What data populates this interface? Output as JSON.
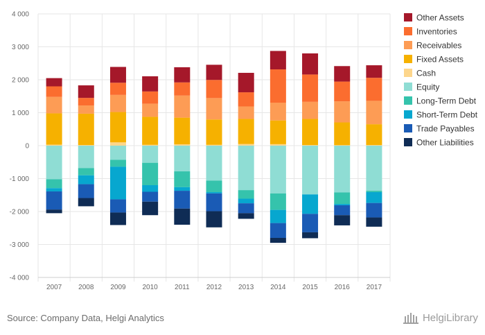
{
  "chart_data": {
    "type": "bar",
    "stacked": true,
    "categories": [
      "2007",
      "2008",
      "2009",
      "2010",
      "2011",
      "2012",
      "2013",
      "2014",
      "2015",
      "2016",
      "2017"
    ],
    "ylim": [
      -4000,
      4000
    ],
    "yticks": [
      4000,
      3000,
      2000,
      1000,
      0,
      -1000,
      -2000,
      -3000,
      -4000
    ],
    "ytick_labels": [
      "4 000",
      "3 000",
      "2 000",
      "1 000",
      "0",
      "-1 000",
      "-2 000",
      "-3 000",
      "-4 000"
    ],
    "grid": true,
    "legend_position": "right",
    "series": [
      {
        "name": "Cash",
        "color": "#fdd68c",
        "values": [
          30,
          20,
          100,
          25,
          40,
          25,
          50,
          45,
          20,
          15,
          20
        ]
      },
      {
        "name": "Fixed Assets",
        "color": "#f6b100",
        "values": [
          950,
          950,
          920,
          850,
          810,
          770,
          760,
          720,
          790,
          690,
          630
        ]
      },
      {
        "name": "Receivables",
        "color": "#fd9c55",
        "values": [
          500,
          250,
          520,
          400,
          670,
          650,
          380,
          540,
          520,
          640,
          710
        ]
      },
      {
        "name": "Inventories",
        "color": "#fb6d2f",
        "values": [
          320,
          230,
          370,
          370,
          400,
          550,
          430,
          1010,
          830,
          600,
          700
        ]
      },
      {
        "name": "Other Assets",
        "color": "#a5182a",
        "values": [
          250,
          380,
          480,
          460,
          460,
          460,
          590,
          560,
          640,
          470,
          380
        ]
      },
      {
        "name": "Equity",
        "color": "#8fddd4",
        "values": [
          -1020,
          -680,
          -430,
          -520,
          -780,
          -1060,
          -1350,
          -1450,
          -1480,
          -1420,
          -1370
        ]
      },
      {
        "name": "Long-Term Debt",
        "color": "#35c3ac",
        "values": [
          -270,
          -220,
          -210,
          -680,
          -480,
          -350,
          -260,
          -500,
          0,
          -350,
          -40
        ]
      },
      {
        "name": "Short-Term Debt",
        "color": "#07a7cf",
        "values": [
          -100,
          -270,
          -990,
          -200,
          -110,
          -40,
          -140,
          -400,
          -590,
          -40,
          -330
        ]
      },
      {
        "name": "Trade Payables",
        "color": "#1a5bb5",
        "values": [
          -550,
          -420,
          -400,
          -300,
          -540,
          -540,
          -300,
          -450,
          -560,
          -300,
          -440
        ]
      },
      {
        "name": "Other Liabilities",
        "color": "#0f2c55",
        "values": [
          -110,
          -250,
          -380,
          -410,
          -490,
          -490,
          -170,
          -150,
          -180,
          -310,
          -280
        ]
      }
    ],
    "legend_order": [
      "Other Assets",
      "Inventories",
      "Receivables",
      "Fixed Assets",
      "Cash",
      "Equity",
      "Long-Term Debt",
      "Short-Term Debt",
      "Trade Payables",
      "Other Liabilities"
    ]
  },
  "footer": {
    "source": "Source: Company Data, Helgi Analytics",
    "logo_text": "HelgiLibrary"
  }
}
